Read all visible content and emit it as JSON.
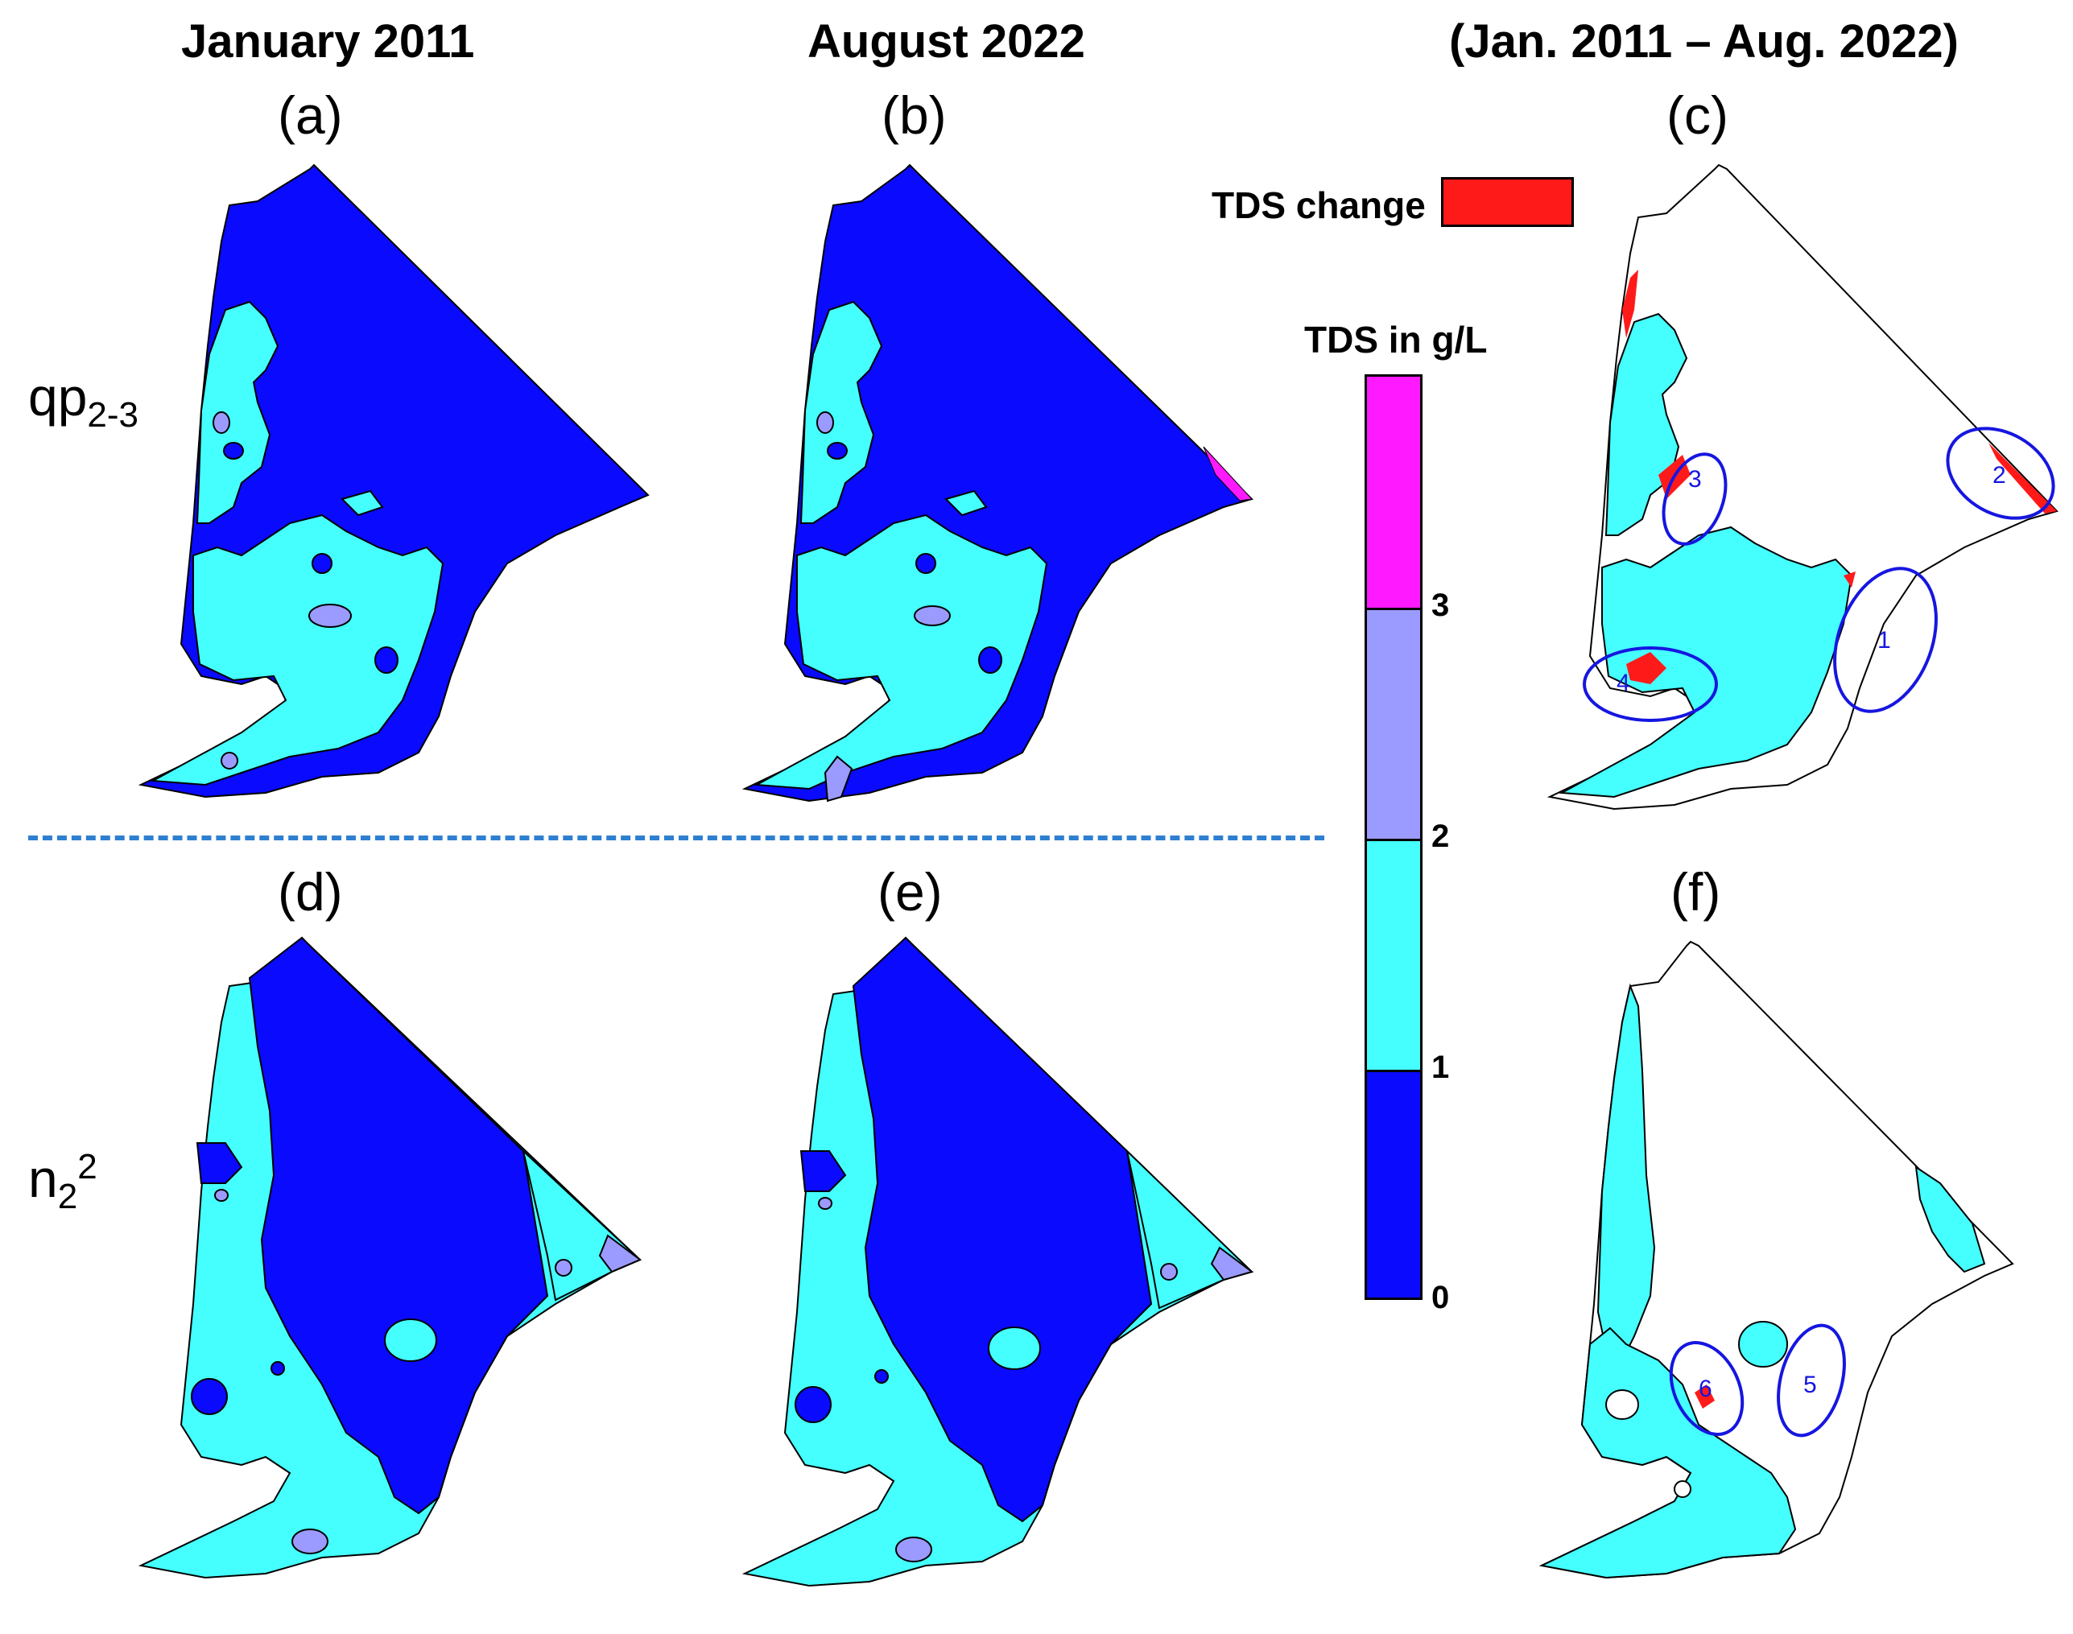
{
  "columns": [
    "January 2011",
    "August 2022",
    "(Jan. 2011 – Aug. 2022)"
  ],
  "panels": [
    "(a)",
    "(b)",
    "(c)",
    "(d)",
    "(e)",
    "(f)"
  ],
  "rows": {
    "top": {
      "base": "qp",
      "sub": "2-3",
      "sup": ""
    },
    "bottom": {
      "base": "n",
      "sub": "2",
      "sup": "2"
    }
  },
  "legend": {
    "change_label": "TDS change",
    "change_color": "#ff1a1a",
    "colorbar_title": "TDS in g/L",
    "ticks": [
      "0",
      "1",
      "2",
      "3"
    ],
    "classes": [
      {
        "range": "0-1",
        "color": "#0a0aff"
      },
      {
        "range": "1-2",
        "color": "#45ffff"
      },
      {
        "range": "2-3",
        "color": "#9b9bff"
      },
      {
        "range": ">3",
        "color": "#ff19ff"
      }
    ]
  },
  "zones": [
    "1",
    "2",
    "3",
    "4",
    "5",
    "6"
  ],
  "colors": {
    "low": "#0a0aff",
    "mid": "#45ffff",
    "high": "#9b9bff",
    "top": "#ff19ff",
    "change": "#ff1a1a",
    "ellipse": "#1616e0",
    "divider": "#2f7fd0"
  }
}
